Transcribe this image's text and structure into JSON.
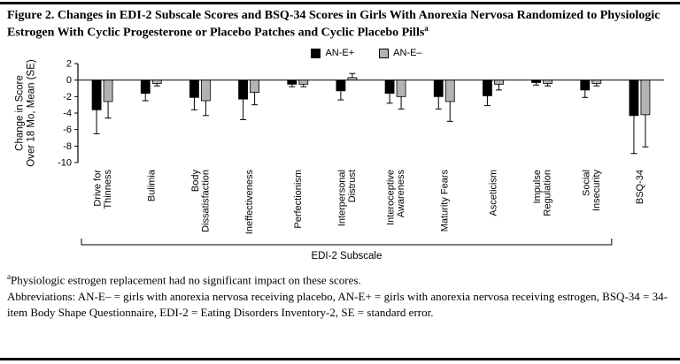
{
  "figure": {
    "title": "Figure 2. Changes in EDI-2 Subscale Scores and BSQ-34 Scores in Girls With Anorexia Nervosa Randomized to Physiologic Estrogen With Cyclic Progesterone or Placebo Patches and Cyclic Placebo Pills",
    "title_superscript": "a"
  },
  "legend": {
    "items": [
      {
        "label": "AN-E+",
        "color": "#000000"
      },
      {
        "label": "AN-E–",
        "color": "#b3b3b3"
      }
    ]
  },
  "chart_data": {
    "type": "bar",
    "title": "Changes in EDI-2 Subscale Scores and BSQ-34 Scores",
    "categories": [
      "Drive for\nThinness",
      "Bulimia",
      "Body\nDissatisfaction",
      "Ineffectiveness",
      "Perfectionism",
      "Interpersonal\nDistrust",
      "Interoceptive\nAwareness",
      "Maturity Fears",
      "Asceticism",
      "Impulse\nRegulation",
      "Social\nInsecurity",
      "BSQ-34"
    ],
    "series": [
      {
        "name": "AN-E+",
        "color": "#000000",
        "values": [
          -3.6,
          -1.6,
          -2.1,
          -2.3,
          -0.5,
          -1.3,
          -1.6,
          -2.0,
          -1.9,
          -0.3,
          -1.2,
          -4.3
        ],
        "se": [
          2.9,
          0.9,
          1.5,
          2.5,
          0.3,
          1.1,
          1.2,
          1.5,
          1.2,
          0.3,
          0.9,
          4.6
        ]
      },
      {
        "name": "AN-E–",
        "color": "#b3b3b3",
        "values": [
          -2.6,
          -0.4,
          -2.5,
          -1.5,
          -0.5,
          0.3,
          -2.0,
          -2.6,
          -0.5,
          -0.4,
          -0.4,
          -4.2
        ],
        "se": [
          2.0,
          0.3,
          1.8,
          1.5,
          0.3,
          0.5,
          1.5,
          2.4,
          0.7,
          0.3,
          0.3,
          3.9
        ]
      }
    ],
    "xlabel": "",
    "ylabel": "Change in Score\nOver 18 Mo, Mean (SE)",
    "ylim": [
      -10,
      2
    ],
    "yticks": [
      2,
      0,
      -2,
      -4,
      -6,
      -8,
      -10
    ],
    "grid": false,
    "legend_position": "top",
    "group_axis_label": "EDI-2 Subscale",
    "group_span": [
      0,
      10
    ]
  },
  "footnotes": {
    "note_superscript": "a",
    "note": "Physiologic estrogen replacement had no significant impact on these scores.",
    "abbreviations": "Abbreviations: AN-E– = girls with anorexia nervosa receiving placebo, AN-E+ = girls with anorexia nervosa receiving estrogen, BSQ-34 = 34-item Body Shape Questionnaire, EDI-2 = Eating Disorders Inventory-2, SE = standard error."
  }
}
